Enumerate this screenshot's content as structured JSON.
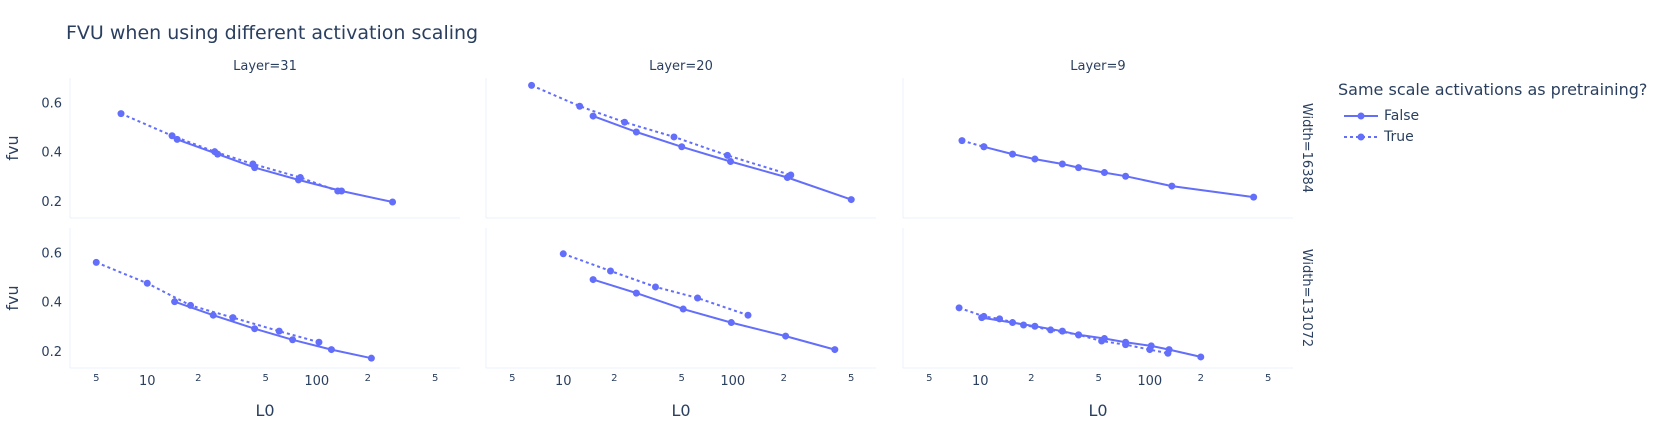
{
  "chart_data": {
    "type": "line",
    "title": "FVU when using different activation scaling",
    "xlabel": "L0",
    "ylabel": "fvu",
    "x_scale": "log",
    "xlim": [
      3.5,
      700
    ],
    "ylim": [
      0.13,
      0.7
    ],
    "grid": false,
    "legend_title": "Same scale activations as pretraining?",
    "legend_position": "top-right",
    "color": "#636efa",
    "x_tick_labels": [
      {
        "value": 5,
        "label": "5",
        "minor": true
      },
      {
        "value": 10,
        "label": "10",
        "minor": false
      },
      {
        "value": 20,
        "label": "2",
        "minor": true
      },
      {
        "value": 50,
        "label": "5",
        "minor": true
      },
      {
        "value": 100,
        "label": "100",
        "minor": false
      },
      {
        "value": 200,
        "label": "2",
        "minor": true
      },
      {
        "value": 500,
        "label": "5",
        "minor": true
      }
    ],
    "y_ticks": [
      0.2,
      0.4,
      0.6
    ],
    "y_tick_labels": [
      "0.2",
      "0.4",
      "0.6"
    ],
    "series_names": [
      "False",
      "True"
    ],
    "panels": [
      {
        "col_label": "Layer=31",
        "row_label": "Width=16384",
        "row": 0,
        "col": 0,
        "series": [
          {
            "name": "False",
            "dash": "solid",
            "x": [
              15,
              26,
              43,
              78,
              140,
              280
            ],
            "y": [
              0.45,
              0.39,
              0.335,
              0.285,
              0.24,
              0.195
            ]
          },
          {
            "name": "True",
            "dash": "dot",
            "x": [
              7,
              14,
              25,
              42,
              80,
              133
            ],
            "y": [
              0.555,
              0.465,
              0.4,
              0.35,
              0.295,
              0.24
            ]
          }
        ]
      },
      {
        "col_label": "Layer=20",
        "row_label": "Width=16384",
        "row": 0,
        "col": 1,
        "series": [
          {
            "name": "False",
            "dash": "solid",
            "x": [
              15,
              27,
              50,
              97,
              210,
              500
            ],
            "y": [
              0.545,
              0.48,
              0.42,
              0.36,
              0.295,
              0.205
            ]
          },
          {
            "name": "True",
            "dash": "dot",
            "x": [
              6.5,
              12.5,
              23,
              45,
              93,
              220
            ],
            "y": [
              0.67,
              0.585,
              0.52,
              0.46,
              0.385,
              0.305
            ]
          }
        ]
      },
      {
        "col_label": "Layer=9",
        "row_label": "Width=16384",
        "row": 0,
        "col": 2,
        "series": [
          {
            "name": "False",
            "dash": "solid",
            "x": [
              10.5,
              15.5,
              21,
              30.5,
              38,
              54,
              72,
              135,
              410
            ],
            "y": [
              0.42,
              0.39,
              0.37,
              0.35,
              0.335,
              0.315,
              0.3,
              0.26,
              0.215
            ]
          },
          {
            "name": "True",
            "dash": "dot",
            "x": [
              7.8,
              10.5
            ],
            "y": [
              0.445,
              0.42
            ]
          }
        ]
      },
      {
        "col_label": "Layer=31",
        "row_label": "Width=131072",
        "row": 1,
        "col": 0,
        "series": [
          {
            "name": "False",
            "dash": "solid",
            "x": [
              14.5,
              24.5,
              43,
              72,
              122,
              210
            ],
            "y": [
              0.4,
              0.345,
              0.29,
              0.245,
              0.205,
              0.17
            ]
          },
          {
            "name": "True",
            "dash": "dot",
            "x": [
              5,
              10,
              18,
              32,
              60,
              103
            ],
            "y": [
              0.56,
              0.475,
              0.385,
              0.335,
              0.28,
              0.235
            ]
          }
        ]
      },
      {
        "col_label": "Layer=20",
        "row_label": "Width=131072",
        "row": 1,
        "col": 1,
        "series": [
          {
            "name": "False",
            "dash": "solid",
            "x": [
              15,
              27,
              51,
              98,
              205,
              400
            ],
            "y": [
              0.49,
              0.435,
              0.37,
              0.315,
              0.26,
              0.205
            ]
          },
          {
            "name": "True",
            "dash": "dot",
            "x": [
              10,
              19,
              35,
              62,
              123
            ],
            "y": [
              0.595,
              0.525,
              0.46,
              0.415,
              0.345
            ]
          }
        ]
      },
      {
        "col_label": "Layer=9",
        "row_label": "Width=131072",
        "row": 1,
        "col": 2,
        "series": [
          {
            "name": "False",
            "dash": "solid",
            "x": [
              10.2,
              15.5,
              21,
              30.5,
              38,
              54,
              72,
              102,
              130,
              200
            ],
            "y": [
              0.335,
              0.315,
              0.3,
              0.28,
              0.265,
              0.25,
              0.235,
              0.22,
              0.205,
              0.175
            ]
          },
          {
            "name": "True",
            "dash": "dot",
            "x": [
              7.5,
              10.5,
              13,
              18,
              26,
              38,
              52,
              72,
              100,
              128
            ],
            "y": [
              0.375,
              0.34,
              0.33,
              0.305,
              0.285,
              0.265,
              0.24,
              0.225,
              0.205,
              0.19
            ]
          }
        ]
      }
    ]
  }
}
